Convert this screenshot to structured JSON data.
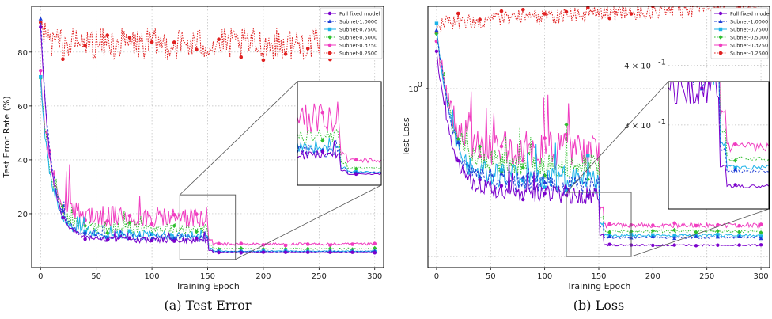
{
  "chart_data": [
    {
      "type": "line",
      "caption": "(a) Test Error",
      "xlabel": "Training Epoch",
      "ylabel": "Test Error Rate (%)",
      "xlim": [
        -8,
        308
      ],
      "ylim": [
        0,
        97
      ],
      "xticks": [
        0,
        50,
        100,
        150,
        200,
        250,
        300
      ],
      "yticks": [
        20,
        40,
        60,
        80
      ],
      "ytick_labels": [
        "20",
        "40",
        "60",
        "80"
      ],
      "grid": true,
      "legend": "top-right",
      "inset_zoom": {
        "x": [
          125,
          175
        ],
        "y": [
          3,
          27
        ]
      },
      "series": [
        {
          "name": "Full fixed model",
          "color": "#7a00cc",
          "dash": "solid",
          "marker": "circle",
          "start": 90,
          "mid": 10.5,
          "final": 5.6,
          "noise": 1.0
        },
        {
          "name": "Subnet-1.0000",
          "color": "#1f3fd6",
          "dash": "dash",
          "marker": "triangle",
          "start": 93,
          "mid": 11.5,
          "final": 6.0,
          "noise": 1.3
        },
        {
          "name": "Subnet-0.7500",
          "color": "#1cb2e8",
          "dash": "solid",
          "marker": "square",
          "start": 70,
          "mid": 12.5,
          "final": 6.1,
          "noise": 1.6
        },
        {
          "name": "Subnet-0.5000",
          "color": "#2fbf2f",
          "dash": "dot",
          "marker": "diamond",
          "start": 70,
          "mid": 15.0,
          "final": 7.0,
          "noise": 2.2
        },
        {
          "name": "Subnet-0.3750",
          "color": "#f03cc0",
          "dash": "solid",
          "marker": "pentagon",
          "start": 70,
          "mid": 19.0,
          "final": 8.7,
          "noise": 4.0
        },
        {
          "name": "Subnet-0.2500",
          "color": "#e02020",
          "dash": "dot",
          "marker": "hexagon",
          "start": 90,
          "mid": 83.0,
          "final": 82.0,
          "noise": 3.0
        }
      ]
    },
    {
      "type": "line",
      "caption": "(b) Loss",
      "xlabel": "Training Epoch",
      "ylabel": "Test Loss",
      "xlim": [
        -8,
        308
      ],
      "ylim": [
        0.18,
        2.2
      ],
      "yscale": "log",
      "xticks": [
        0,
        50,
        100,
        150,
        200,
        250,
        300
      ],
      "yticks": [
        1.0
      ],
      "ytick_labels": [
        "10^0"
      ],
      "grid": true,
      "legend": "top-right",
      "inset_zoom": {
        "x": [
          120,
          180
        ],
        "y": [
          0.2,
          0.37
        ]
      },
      "inset_yticks": [
        0.3,
        0.4
      ],
      "inset_ytick_labels": [
        "3 × 10^-1",
        "4 × 10^-1"
      ],
      "series": [
        {
          "name": "Full fixed model",
          "color": "#7a00cc",
          "dash": "solid",
          "marker": "circle",
          "start": 1.4,
          "mid": 0.38,
          "final": 0.223,
          "noise": 0.03
        },
        {
          "name": "Subnet-1.0000",
          "color": "#1f3fd6",
          "dash": "dash",
          "marker": "triangle",
          "start": 1.75,
          "mid": 0.42,
          "final": 0.24,
          "noise": 0.04
        },
        {
          "name": "Subnet-0.7500",
          "color": "#1cb2e8",
          "dash": "solid",
          "marker": "square",
          "start": 1.75,
          "mid": 0.44,
          "final": 0.245,
          "noise": 0.05
        },
        {
          "name": "Subnet-0.5000",
          "color": "#2fbf2f",
          "dash": "dot",
          "marker": "diamond",
          "start": 1.75,
          "mid": 0.5,
          "final": 0.255,
          "noise": 0.06
        },
        {
          "name": "Subnet-0.3750",
          "color": "#f03cc0",
          "dash": "solid",
          "marker": "pentagon",
          "start": 1.65,
          "mid": 0.58,
          "final": 0.27,
          "noise": 0.1
        },
        {
          "name": "Subnet-0.2500",
          "color": "#e02020",
          "dash": "dot",
          "marker": "hexagon",
          "start": 1.7,
          "mid": 1.9,
          "final": 2.2,
          "noise": 0.15
        }
      ]
    }
  ]
}
